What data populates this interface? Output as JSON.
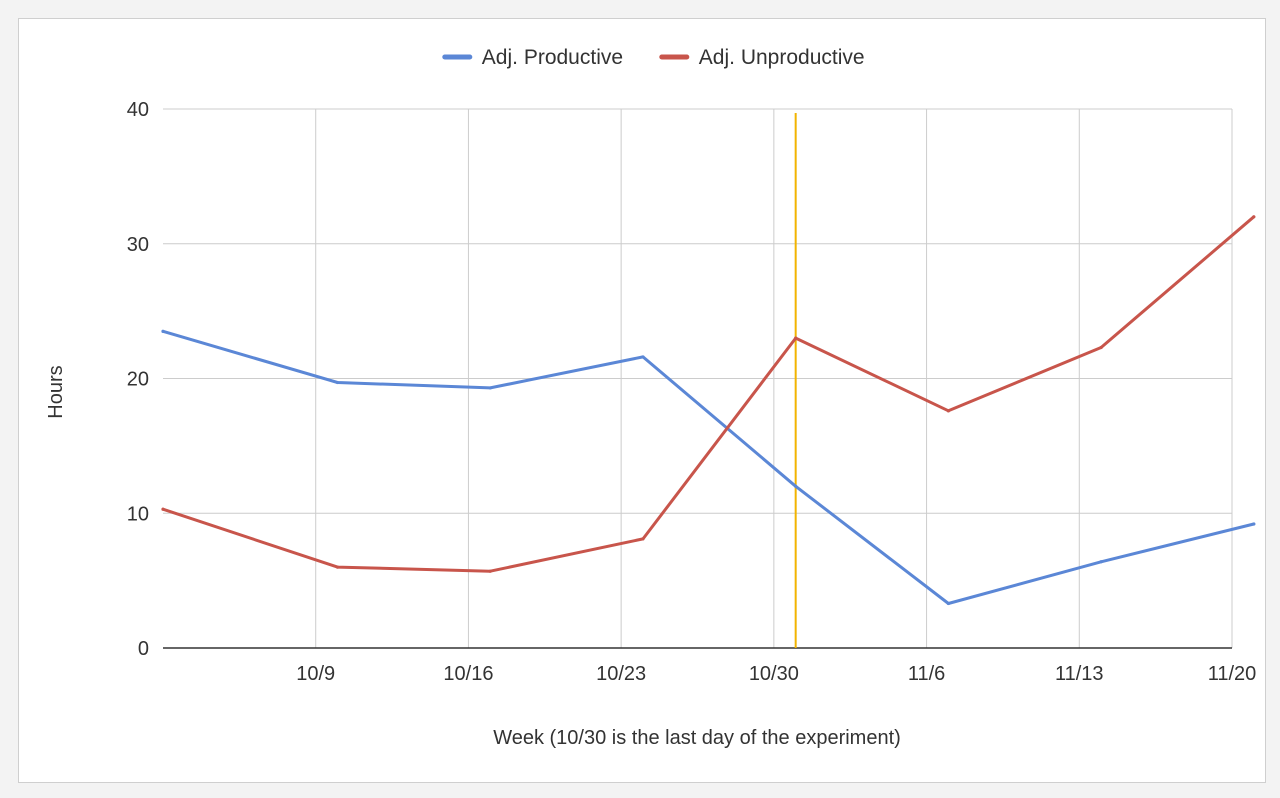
{
  "chart_data": {
    "type": "line",
    "title": "",
    "xlabel": "Week (10/30 is the last day of the experiment)",
    "ylabel": "Hours",
    "ylim": [
      0,
      40
    ],
    "yticks": [
      0,
      10,
      20,
      30,
      40
    ],
    "grid": true,
    "legend_position": "top-center",
    "x": [
      "10/2",
      "10/9",
      "10/16",
      "10/23",
      "10/30",
      "11/6",
      "11/13",
      "11/20"
    ],
    "x_tick_labels": [
      "10/9",
      "10/16",
      "10/23",
      "10/30",
      "11/6",
      "11/13",
      "11/20"
    ],
    "x_range": [
      "10/2",
      "11/20"
    ],
    "series": [
      {
        "name": "Adj. Productive",
        "color": "#5b87d6",
        "points": [
          {
            "x": "10/2",
            "y": 23.5
          },
          {
            "x": "10/10",
            "y": 19.7
          },
          {
            "x": "10/17",
            "y": 19.3
          },
          {
            "x": "10/24",
            "y": 21.6
          },
          {
            "x": "10/31",
            "y": 12.0
          },
          {
            "x": "11/7",
            "y": 3.3
          },
          {
            "x": "11/14",
            "y": 6.4
          },
          {
            "x": "11/21",
            "y": 9.2
          }
        ]
      },
      {
        "name": "Adj. Unproductive",
        "color": "#c8554b",
        "points": [
          {
            "x": "10/2",
            "y": 10.3
          },
          {
            "x": "10/10",
            "y": 6.0
          },
          {
            "x": "10/17",
            "y": 5.7
          },
          {
            "x": "10/24",
            "y": 8.1
          },
          {
            "x": "10/31",
            "y": 23.0
          },
          {
            "x": "11/7",
            "y": 17.6
          },
          {
            "x": "11/14",
            "y": 22.3
          },
          {
            "x": "11/21",
            "y": 32.0
          }
        ]
      }
    ],
    "annotations": [
      {
        "type": "vertical-line",
        "x": "10/31",
        "color": "#f2b400"
      }
    ]
  }
}
